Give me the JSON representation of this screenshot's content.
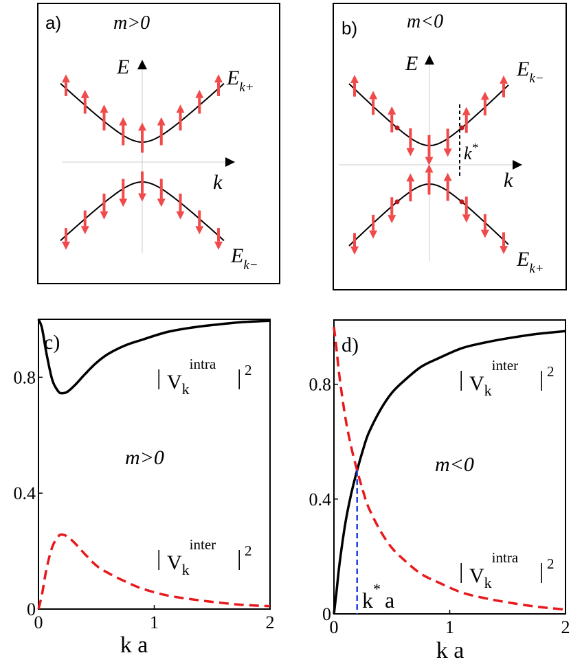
{
  "chart_data": [
    {
      "type": "diagram",
      "panel_label": "a)",
      "condition": "m>0",
      "axis_labels": {
        "y": "E",
        "x": "k"
      },
      "band_labels": {
        "upper": "E",
        "upper_sub": "k+",
        "lower": "E",
        "lower_sub": "k−"
      },
      "spin_arrows": {
        "upper": [
          "up",
          "up",
          "up",
          "up",
          "up",
          "up",
          "up",
          "up",
          "up"
        ],
        "lower": [
          "down",
          "down",
          "down",
          "down",
          "down",
          "down",
          "down",
          "down",
          "down"
        ]
      }
    },
    {
      "type": "diagram",
      "panel_label": "b)",
      "condition": "m<0",
      "axis_labels": {
        "y": "E",
        "x": "k"
      },
      "marker_label": "k",
      "marker_sup": "*",
      "band_labels": {
        "upper": "E",
        "upper_sub": "k−",
        "lower": "E",
        "lower_sub": "k+"
      },
      "spin_arrows": {
        "upper": [
          "up",
          "up",
          "up",
          "down",
          "down",
          "down",
          "up",
          "up",
          "up"
        ],
        "lower": [
          "down",
          "down",
          "down",
          "up",
          "up",
          "up",
          "down",
          "down",
          "down"
        ]
      }
    },
    {
      "type": "line",
      "panel_label": "c)",
      "annotation": "m>0",
      "xlabel": "k a",
      "xlim": [
        0,
        2
      ],
      "ylim": [
        0,
        1
      ],
      "xticks": [
        "0",
        "1",
        "2"
      ],
      "yticks": [
        "0",
        "0.4",
        "0.8"
      ],
      "series": [
        {
          "name": "|V_k^intra|^2",
          "style": "solid",
          "color": "#000000",
          "x": [
            0,
            0.03,
            0.07,
            0.12,
            0.17,
            0.2,
            0.25,
            0.32,
            0.4,
            0.5,
            0.6,
            0.75,
            0.9,
            1.1,
            1.3,
            1.5,
            1.75,
            2.0
          ],
          "y": [
            1.0,
            0.97,
            0.88,
            0.79,
            0.752,
            0.745,
            0.75,
            0.775,
            0.81,
            0.85,
            0.88,
            0.91,
            0.93,
            0.955,
            0.97,
            0.98,
            0.99,
            0.995
          ]
        },
        {
          "name": "|V_k^inter|^2",
          "style": "dashed",
          "color": "#e8191c",
          "x": [
            0,
            0.03,
            0.07,
            0.12,
            0.17,
            0.2,
            0.25,
            0.32,
            0.4,
            0.5,
            0.6,
            0.75,
            0.9,
            1.1,
            1.3,
            1.5,
            1.75,
            2.0
          ],
          "y": [
            0.0,
            0.05,
            0.14,
            0.215,
            0.25,
            0.257,
            0.25,
            0.225,
            0.19,
            0.15,
            0.125,
            0.095,
            0.07,
            0.048,
            0.035,
            0.025,
            0.015,
            0.01
          ]
        }
      ],
      "labels": [
        {
          "series": 0,
          "base": "V",
          "sub": "k",
          "sup": "intra",
          "power": "2"
        },
        {
          "series": 1,
          "base": "V",
          "sub": "k",
          "sup": "inter",
          "power": "2"
        }
      ]
    },
    {
      "type": "line",
      "panel_label": "d)",
      "annotation": "m<0",
      "xlabel": "k a",
      "xlim": [
        0,
        2
      ],
      "ylim": [
        0,
        1
      ],
      "xticks": [
        "0",
        "1",
        "2"
      ],
      "yticks": [
        "0",
        "0.4",
        "0.8"
      ],
      "crossing_x": 0.2,
      "crossing_y": 0.5,
      "crossing_label": "k",
      "crossing_sup": "*",
      "crossing_suffix": "a",
      "series": [
        {
          "name": "|V_k^inter|^2",
          "style": "solid",
          "color": "#000000",
          "x": [
            0,
            0.02,
            0.05,
            0.1,
            0.15,
            0.2,
            0.25,
            0.3,
            0.4,
            0.5,
            0.6,
            0.75,
            0.9,
            1.1,
            1.3,
            1.5,
            1.75,
            2.0
          ],
          "y": [
            0.0,
            0.07,
            0.18,
            0.32,
            0.42,
            0.5,
            0.57,
            0.63,
            0.71,
            0.77,
            0.81,
            0.86,
            0.89,
            0.925,
            0.945,
            0.96,
            0.975,
            0.985
          ]
        },
        {
          "name": "|V_k^intra|^2",
          "style": "dashed",
          "color": "#e8191c",
          "x": [
            0,
            0.02,
            0.05,
            0.1,
            0.15,
            0.2,
            0.25,
            0.3,
            0.4,
            0.5,
            0.6,
            0.75,
            0.9,
            1.1,
            1.3,
            1.5,
            1.75,
            2.0
          ],
          "y": [
            1.0,
            0.93,
            0.82,
            0.68,
            0.58,
            0.5,
            0.43,
            0.37,
            0.29,
            0.23,
            0.19,
            0.14,
            0.11,
            0.075,
            0.055,
            0.04,
            0.025,
            0.015
          ]
        }
      ],
      "labels": [
        {
          "series": 0,
          "base": "V",
          "sub": "k",
          "sup": "inter",
          "power": "2"
        },
        {
          "series": 1,
          "base": "V",
          "sub": "k",
          "sup": "intra",
          "power": "2"
        }
      ]
    }
  ]
}
